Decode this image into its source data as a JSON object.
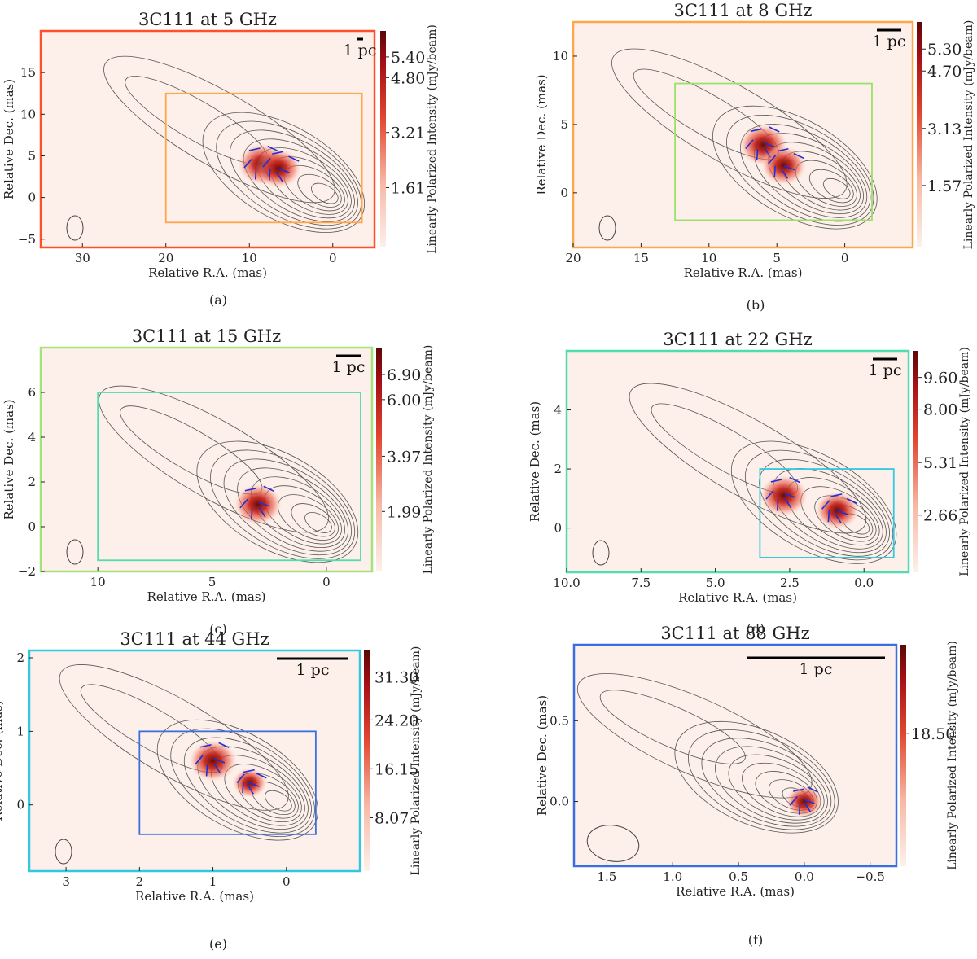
{
  "figure": {
    "xlabel": "Relative R.A. (mas)",
    "ylabel": "Relative Dec. (mas)",
    "cbar_label": "Linearly Polarized Intensity (mJy/beam)"
  },
  "chart_data": [
    {
      "panel": "(a)",
      "type": "heatmap",
      "title": "3C111 at 5 GHz",
      "frame_color": "#ff4f2b",
      "xlim": [
        35,
        -5
      ],
      "ylim": [
        -6,
        20
      ],
      "xticks": [
        30,
        20,
        10,
        0
      ],
      "yticks": [
        -5,
        0,
        5,
        10,
        15
      ],
      "scalebar": "1 pc",
      "colorbar_ticks": [
        1.61,
        3.21,
        4.8,
        5.4
      ],
      "inset_box": {
        "x": [
          20,
          -3.5
        ],
        "y": [
          -3,
          12.5
        ],
        "color": "#ffa64d"
      },
      "pol_peaks": [
        {
          "ra": 8.5,
          "dec": 4,
          "peak": 5.4
        },
        {
          "ra": 6.5,
          "dec": 3.5,
          "peak": 4.8
        }
      ]
    },
    {
      "panel": "(b)",
      "type": "heatmap",
      "title": "3C111 at 8 GHz",
      "frame_color": "#ffa64d",
      "xlim": [
        20,
        -5
      ],
      "ylim": [
        -4,
        12.5
      ],
      "xticks": [
        20,
        15,
        10,
        5,
        0
      ],
      "yticks": [
        0,
        5,
        10
      ],
      "scalebar": "1 pc",
      "colorbar_ticks": [
        1.57,
        3.13,
        4.7,
        5.3
      ],
      "inset_box": {
        "x": [
          12.5,
          -2
        ],
        "y": [
          -2,
          8
        ],
        "color": "#9be06a"
      },
      "pol_peaks": [
        {
          "ra": 6.0,
          "dec": 3.5,
          "peak": 5.3
        },
        {
          "ra": 4.5,
          "dec": 2.0,
          "peak": 4.7
        }
      ]
    },
    {
      "panel": "(c)",
      "type": "heatmap",
      "title": "3C111 at 15 GHz",
      "frame_color": "#a6e27a",
      "xlim": [
        12.5,
        -2
      ],
      "ylim": [
        -2,
        8
      ],
      "xticks": [
        10,
        5,
        0
      ],
      "yticks": [
        -2,
        0,
        2,
        4,
        6
      ],
      "scalebar": "1 pc",
      "colorbar_ticks": [
        1.99,
        3.97,
        6.0,
        6.9
      ],
      "inset_box": {
        "x": [
          10,
          -1.5
        ],
        "y": [
          -1.5,
          6
        ],
        "color": "#4fdcb0"
      },
      "pol_peaks": [
        {
          "ra": 3.0,
          "dec": 1.0,
          "peak": 6.9
        }
      ]
    },
    {
      "panel": "(d)",
      "type": "heatmap",
      "title": "3C111 at 22 GHz",
      "frame_color": "#4fdcb0",
      "xlim": [
        10,
        -1.5
      ],
      "ylim": [
        -1.5,
        6
      ],
      "xticks": [
        10.0,
        7.5,
        5.0,
        2.5,
        0.0
      ],
      "yticks": [
        0,
        2,
        4
      ],
      "scalebar": "1 pc",
      "colorbar_ticks": [
        2.66,
        5.31,
        8.0,
        9.6
      ],
      "inset_box": {
        "x": [
          3.5,
          -1
        ],
        "y": [
          -1,
          2
        ],
        "color": "#31c8e0"
      },
      "pol_peaks": [
        {
          "ra": 2.7,
          "dec": 1.1,
          "peak": 9.6
        },
        {
          "ra": 0.9,
          "dec": 0.6,
          "peak": 8.0
        }
      ]
    },
    {
      "panel": "(e)",
      "type": "heatmap",
      "title": "3C111 at 44 GHz",
      "frame_color": "#31c8e0",
      "xlim": [
        3.5,
        -1
      ],
      "ylim": [
        -0.9,
        2.1
      ],
      "xticks": [
        3,
        2,
        1,
        0
      ],
      "yticks": [
        0,
        1,
        2
      ],
      "scalebar": "1 pc",
      "colorbar_ticks": [
        8.07,
        16.15,
        24.2,
        31.3
      ],
      "inset_box": {
        "x": [
          2,
          -0.4
        ],
        "y": [
          -0.4,
          1.0
        ],
        "color": "#3b6fe0"
      },
      "pol_peaks": [
        {
          "ra": 1.0,
          "dec": 0.6,
          "peak": 31.3
        },
        {
          "ra": 0.5,
          "dec": 0.3,
          "peak": 16.15
        }
      ]
    },
    {
      "panel": "(f)",
      "type": "heatmap",
      "title": "3C111 at 88 GHz",
      "frame_color": "#3b6fe0",
      "xlim": [
        1.75,
        -0.7
      ],
      "ylim": [
        -0.4,
        0.97
      ],
      "xticks": [
        1.5,
        1.0,
        0.5,
        0.0,
        -0.5
      ],
      "yticks": [
        0.0,
        0.5
      ],
      "scalebar": "1 pc",
      "colorbar_ticks": [
        18.5
      ],
      "inset_box": null,
      "pol_peaks": [
        {
          "ra": 0.0,
          "dec": 0.0,
          "peak": 18.5
        }
      ]
    }
  ]
}
